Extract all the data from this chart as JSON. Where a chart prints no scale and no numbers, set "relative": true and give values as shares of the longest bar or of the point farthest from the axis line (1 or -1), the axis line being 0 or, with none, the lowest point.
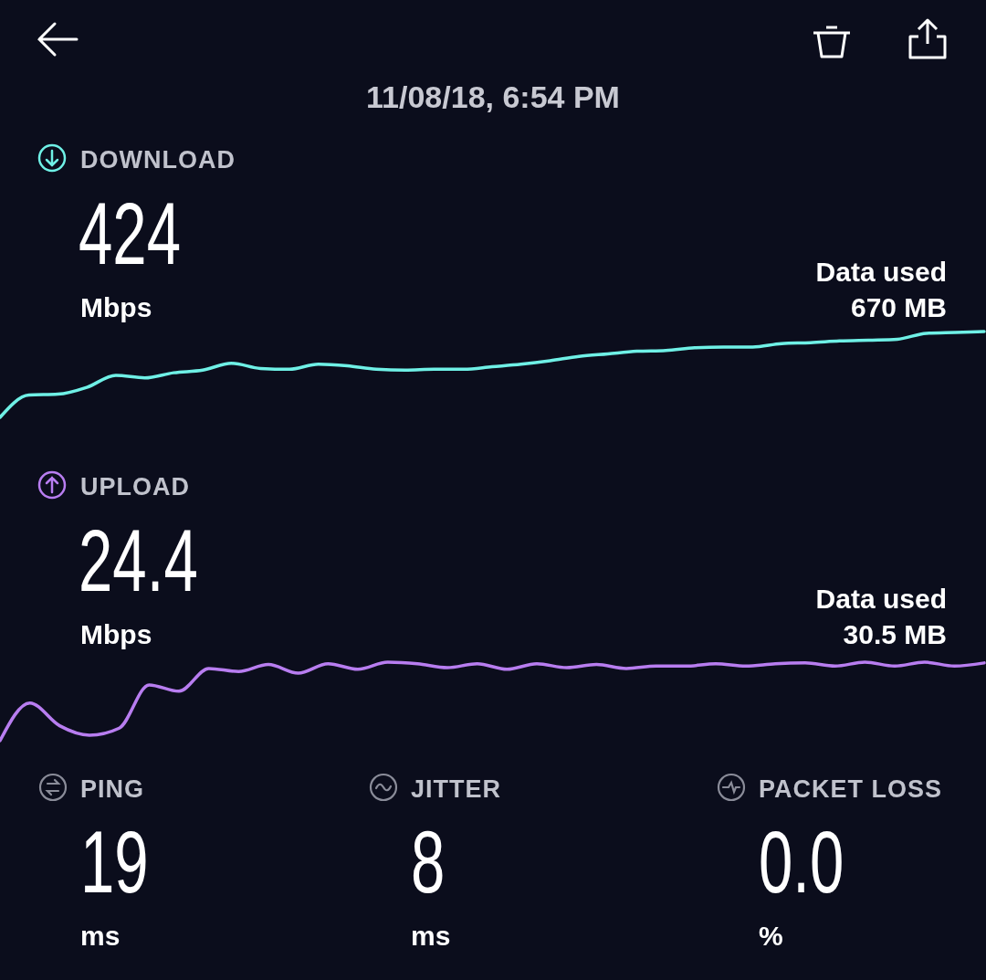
{
  "chart_data": [
    {
      "type": "other",
      "title": "11/08/18, 6:54 PM"
    },
    {
      "type": "line",
      "title": "DOWNLOAD",
      "relative": true,
      "categories": [
        null,
        null,
        null,
        null,
        null,
        null,
        null,
        null,
        null,
        null,
        null,
        null,
        null,
        null,
        null,
        null,
        null,
        null,
        null,
        null,
        null,
        null,
        null,
        null,
        null,
        null,
        null,
        null,
        null,
        null,
        null,
        null,
        null,
        null,
        null
      ],
      "annotations": [
        "424",
        "Mbps",
        "Data used",
        "670 MB"
      ],
      "series": [
        {
          "color": "#6ff0e6",
          "values": [
            0,
            0.26,
            0.27,
            0.35,
            0.49,
            0.46,
            0.52,
            0.55,
            0.63,
            0.57,
            0.56,
            0.62,
            0.6,
            0.56,
            0.55,
            0.56,
            0.56,
            0.59,
            0.62,
            0.66,
            0.71,
            0.74,
            0.77,
            0.78,
            0.81,
            0.82,
            0.82,
            0.86,
            0.87,
            0.89,
            0.9,
            0.91,
            0.98,
            0.99,
            1
          ]
        }
      ]
    },
    {
      "type": "line",
      "title": "UPLOAD",
      "relative": true,
      "categories": [
        null,
        null,
        null,
        null,
        null,
        null,
        null,
        null,
        null,
        null,
        null,
        null,
        null,
        null,
        null,
        null,
        null,
        null,
        null,
        null,
        null,
        null,
        null,
        null,
        null,
        null,
        null,
        null,
        null,
        null,
        null,
        null,
        null,
        null
      ],
      "annotations": [
        "24.4",
        "Mbps",
        "Data used",
        "30.5 MB"
      ],
      "series": [
        {
          "color": "#b87df0",
          "values": [
            0,
            0.48,
            0.19,
            0.07,
            0.16,
            0.71,
            0.63,
            0.92,
            0.88,
            0.97,
            0.86,
            0.98,
            0.91,
            1,
            0.98,
            0.93,
            0.98,
            0.91,
            0.98,
            0.93,
            0.97,
            0.92,
            0.95,
            0.95,
            0.98,
            0.95,
            0.98,
            0.99,
            0.95,
            1,
            0.95,
            1,
            0.95,
            0.99
          ]
        }
      ]
    },
    {
      "type": "other",
      "annotations": [
        "PING",
        "19",
        "ms",
        "JITTER",
        "8",
        "ms",
        "PACKET LOSS",
        "0.0",
        "%"
      ]
    }
  ]
}
